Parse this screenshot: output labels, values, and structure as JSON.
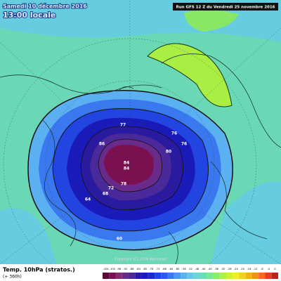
{
  "header": {
    "date": "Samedi 10 décembre 2016",
    "time": "13:00 locale",
    "run": "Run GFS 12 Z du Vendredi 25 novembre 2016"
  },
  "copyright": "Copyright (C) 2016 Meteociel",
  "footer": {
    "field": "Temp. 10hPa (stratos.)",
    "lead": "(+ 360h)"
  },
  "contour_labels": [
    77,
    76,
    80,
    84,
    84,
    78,
    72,
    68,
    64,
    60,
    86,
    76
  ],
  "legend": {
    "labels": [
      -104,
      -100,
      -96,
      -92,
      -88,
      -84,
      -80,
      -76,
      -72,
      -68,
      -64,
      -60,
      -56,
      -52,
      -48,
      -44,
      -40,
      -36,
      -32,
      -28,
      -24,
      -20,
      -16,
      -12,
      -8,
      -4,
      0
    ],
    "colors": [
      "#5a0a3a",
      "#7a1050",
      "#8a2a6a",
      "#6a2a8a",
      "#4a2a9a",
      "#2a1aa0",
      "#1a1ab8",
      "#1a2ad0",
      "#2244e0",
      "#2a5ae8",
      "#3a78f0",
      "#4a98f0",
      "#5ab0f0",
      "#66c8e8",
      "#66d8d0",
      "#66e0b0",
      "#77e890",
      "#88ee66",
      "#aaf044",
      "#ccf033",
      "#eeee22",
      "#f0d020",
      "#f0b020",
      "#f09020",
      "#f06a20",
      "#e04020",
      "#c02020"
    ]
  }
}
